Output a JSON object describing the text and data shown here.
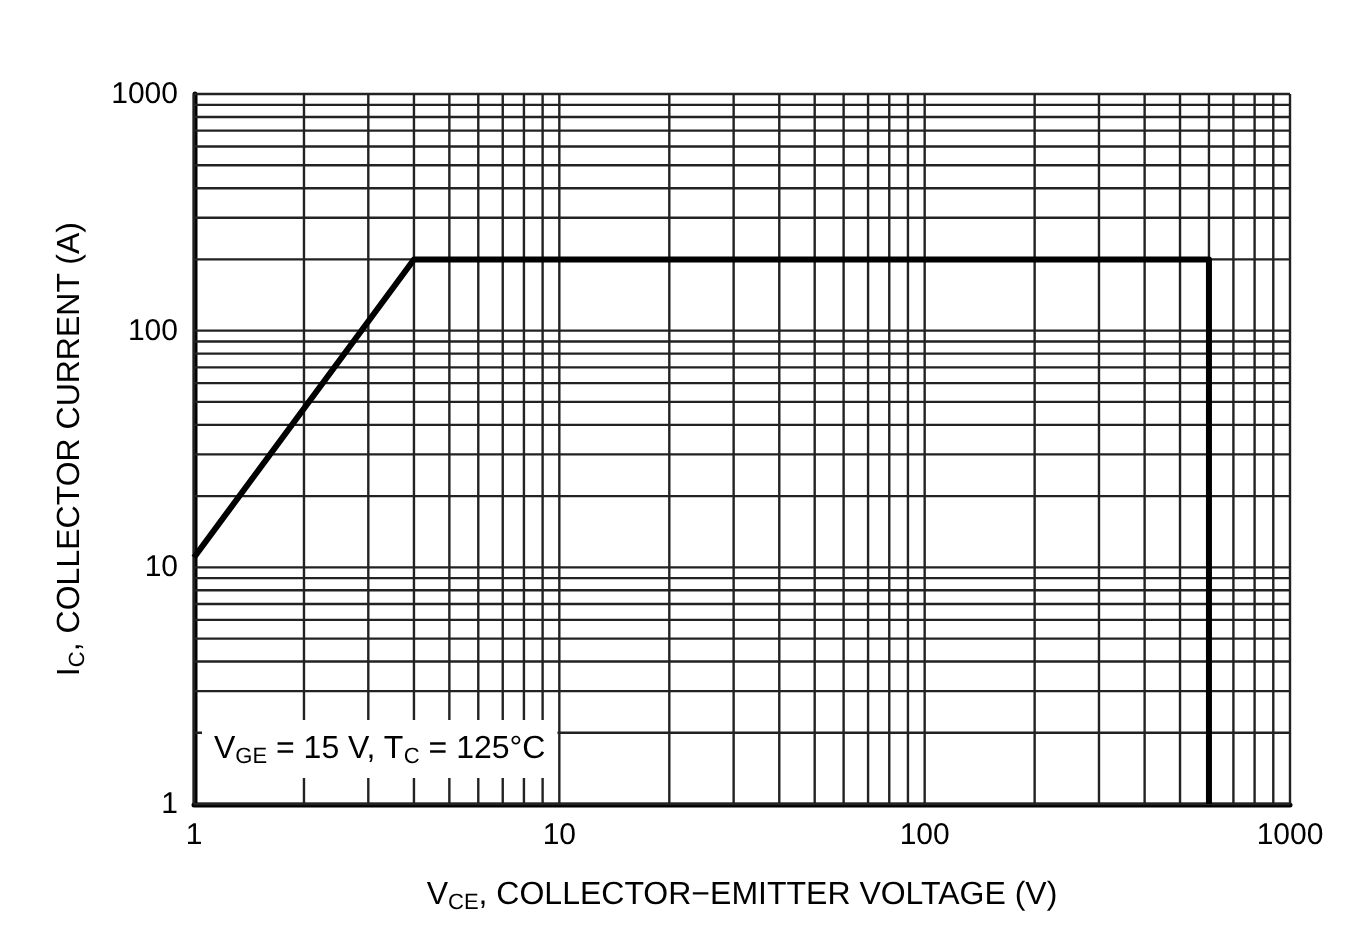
{
  "chart_data": {
    "type": "line",
    "xlabel": "V$_{CE}$, COLLECTOR−EMITTER VOLTAGE (V)",
    "ylabel": "I$_{C}$, COLLECTOR CURRENT (A)",
    "annotations": [
      "V$_{GE}$ = 15 V, T$_{C}$ = 125°C"
    ],
    "series": [
      {
        "color": "#000000",
        "x": [
          1,
          4,
          600,
          600
        ],
        "values": [
          11,
          200,
          200,
          1
        ]
      }
    ],
    "log": "xy",
    "xlim": [
      1,
      1000
    ],
    "ylim": [
      1,
      1000
    ],
    "xticks": [
      1,
      10,
      100,
      1000
    ],
    "yticks": [
      1,
      10,
      100,
      1000
    ],
    "grid": true,
    "marker": "none",
    "line_style": "solid"
  }
}
